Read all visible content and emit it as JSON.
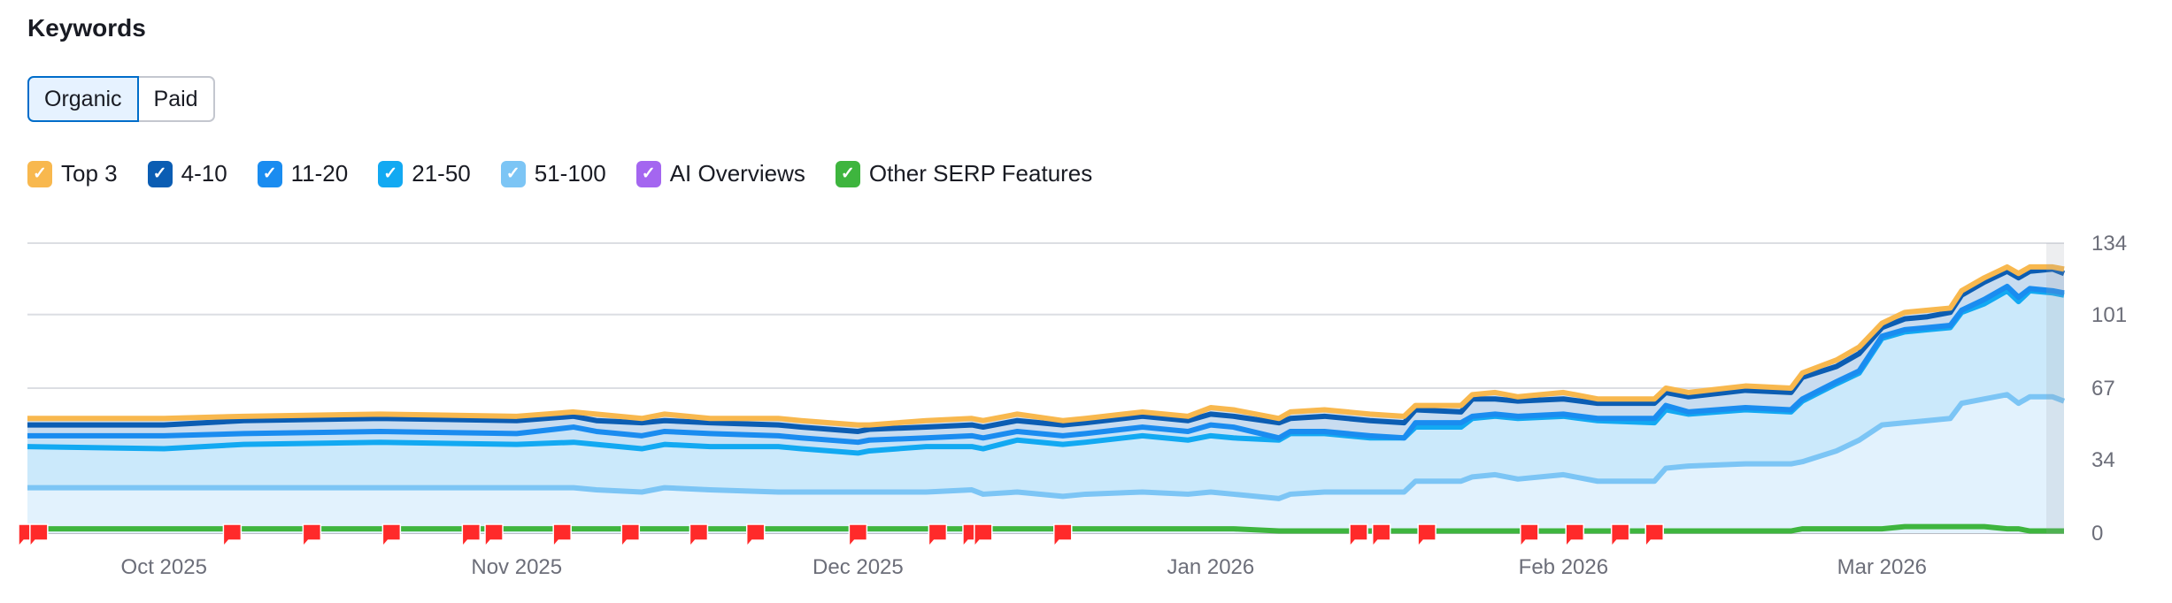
{
  "header": {
    "title": "Keywords"
  },
  "toggle": {
    "options": [
      "Organic",
      "Paid"
    ],
    "selected": "Organic"
  },
  "legend": [
    {
      "label": "Top 3",
      "color": "#f8b84e",
      "checked": true
    },
    {
      "label": "4-10",
      "color": "#0b5db3",
      "checked": true
    },
    {
      "label": "11-20",
      "color": "#1a8cf0",
      "checked": true
    },
    {
      "label": "21-50",
      "color": "#12a9f2",
      "checked": true
    },
    {
      "label": "51-100",
      "color": "#7cc5f5",
      "checked": true
    },
    {
      "label": "AI Overviews",
      "color": "#a466f0",
      "checked": true
    },
    {
      "label": "Other SERP Features",
      "color": "#3eb53e",
      "checked": true
    }
  ],
  "chart_data": {
    "type": "area",
    "stacked": true,
    "x_range": [
      "2025-09-19",
      "2026-03-17"
    ],
    "ylim": [
      0,
      134
    ],
    "y_ticks": [
      0,
      34,
      67,
      101,
      134
    ],
    "y_axis_position": "right",
    "x_ticks": [
      {
        "date": "2025-10-01",
        "label": "Oct 2025"
      },
      {
        "date": "2025-11-01",
        "label": "Nov 2025"
      },
      {
        "date": "2025-12-01",
        "label": "Dec 2025"
      },
      {
        "date": "2026-01-01",
        "label": "Jan 2026"
      },
      {
        "date": "2026-02-01",
        "label": "Feb 2026"
      },
      {
        "date": "2026-03-01",
        "label": "Mar 2026"
      }
    ],
    "grid": true,
    "x": [
      "2025-09-19",
      "2025-10-01",
      "2025-10-08",
      "2025-10-20",
      "2025-11-01",
      "2025-11-06",
      "2025-11-08",
      "2025-11-12",
      "2025-11-14",
      "2025-11-18",
      "2025-11-24",
      "2025-11-26",
      "2025-12-01",
      "2025-12-02",
      "2025-12-07",
      "2025-12-11",
      "2025-12-12",
      "2025-12-15",
      "2025-12-19",
      "2025-12-21",
      "2025-12-26",
      "2025-12-30",
      "2026-01-01",
      "2026-01-03",
      "2026-01-07",
      "2026-01-08",
      "2026-01-11",
      "2026-01-15",
      "2026-01-18",
      "2026-01-19",
      "2026-01-23",
      "2026-01-24",
      "2026-01-26",
      "2026-01-28",
      "2026-02-01",
      "2026-02-04",
      "2026-02-09",
      "2026-02-10",
      "2026-02-12",
      "2026-02-17",
      "2026-02-21",
      "2026-02-22",
      "2026-02-25",
      "2026-02-27",
      "2026-03-01",
      "2026-03-03",
      "2026-03-05",
      "2026-03-07",
      "2026-03-08",
      "2026-03-10",
      "2026-03-12",
      "2026-03-13",
      "2026-03-14",
      "2026-03-16",
      "2026-03-17"
    ],
    "series": [
      {
        "name": "51-100",
        "color": "#7cc5f5",
        "values": [
          21,
          21,
          21,
          21,
          21,
          21,
          20,
          19,
          21,
          20,
          19,
          19,
          19,
          19,
          19,
          20,
          18,
          19,
          17,
          18,
          19,
          18,
          19,
          18,
          16,
          18,
          19,
          19,
          19,
          24,
          24,
          26,
          27,
          25,
          27,
          24,
          24,
          30,
          31,
          32,
          32,
          33,
          38,
          43,
          50,
          51,
          52,
          53,
          60,
          62,
          64,
          60,
          63,
          63,
          61
        ]
      },
      {
        "name": "21-50",
        "color": "#12a9f2",
        "values": [
          19,
          18,
          20,
          21,
          20,
          21,
          21,
          20,
          20,
          20,
          21,
          20,
          18,
          19,
          21,
          20,
          21,
          24,
          24,
          24,
          26,
          25,
          26,
          26,
          27,
          28,
          27,
          25,
          25,
          25,
          25,
          27,
          27,
          28,
          27,
          28,
          27,
          27,
          24,
          25,
          24,
          28,
          31,
          31,
          40,
          42,
          42,
          42,
          42,
          44,
          48,
          47,
          49,
          48,
          49
        ]
      },
      {
        "name": "11-20",
        "color": "#1a8cf0",
        "values": [
          5,
          6,
          5,
          5,
          5,
          7,
          6,
          6,
          6,
          6,
          5,
          5,
          5,
          5,
          4,
          5,
          5,
          4,
          4,
          4,
          4,
          4,
          5,
          5,
          1,
          1,
          1,
          1,
          0,
          2,
          2,
          1,
          1,
          1,
          1,
          1,
          2,
          2,
          1,
          1,
          1,
          1,
          1,
          1,
          1,
          1,
          1,
          1,
          1,
          2,
          2,
          2,
          1,
          1,
          1
        ]
      },
      {
        "name": "4-10",
        "color": "#0b5db3",
        "values": [
          5,
          5,
          6,
          6,
          6,
          5,
          5,
          6,
          5,
          5,
          5,
          5,
          5,
          5,
          5,
          5,
          5,
          5,
          5,
          5,
          5,
          5,
          5,
          5,
          7,
          6,
          7,
          7,
          7,
          6,
          5,
          8,
          7,
          7,
          7,
          7,
          7,
          6,
          7,
          8,
          8,
          10,
          7,
          8,
          4,
          5,
          5,
          6,
          7,
          8,
          7,
          9,
          8,
          10,
          9
        ]
      },
      {
        "name": "Top 3",
        "color": "#f8b84e",
        "values": [
          3,
          3,
          2,
          2,
          2,
          2,
          3,
          2,
          3,
          2,
          3,
          3,
          3,
          2,
          3,
          3,
          3,
          3,
          2,
          2,
          2,
          2,
          3,
          3,
          2,
          3,
          3,
          3,
          3,
          2,
          3,
          2,
          3,
          2,
          3,
          2,
          2,
          2,
          2,
          2,
          2,
          2,
          3,
          3,
          2,
          3,
          3,
          2,
          2,
          2,
          2,
          2,
          2,
          1,
          2
        ]
      },
      {
        "name": "Other SERP Features",
        "color": "#3eb53e",
        "stacked": false,
        "values": [
          2,
          2,
          2,
          2,
          2,
          2,
          2,
          2,
          2,
          2,
          2,
          2,
          2,
          2,
          2,
          2,
          2,
          2,
          2,
          2,
          2,
          2,
          2,
          2,
          1,
          1,
          1,
          1,
          1,
          1,
          1,
          1,
          1,
          1,
          1,
          1,
          1,
          1,
          1,
          1,
          1,
          2,
          2,
          2,
          2,
          3,
          3,
          3,
          3,
          3,
          2,
          2,
          1,
          1,
          1
        ]
      }
    ],
    "notes": [
      "2025-09-19",
      "2025-09-20",
      "2025-10-07",
      "2025-10-14",
      "2025-10-21",
      "2025-10-28",
      "2025-10-30",
      "2025-11-05",
      "2025-11-11",
      "2025-11-17",
      "2025-11-22",
      "2025-12-01",
      "2025-12-08",
      "2025-12-11",
      "2025-12-12",
      "2025-12-19",
      "2026-01-14",
      "2026-01-16",
      "2026-01-20",
      "2026-01-29",
      "2026-02-02",
      "2026-02-06",
      "2026-02-09"
    ],
    "note_color": "#ff2a2a"
  }
}
